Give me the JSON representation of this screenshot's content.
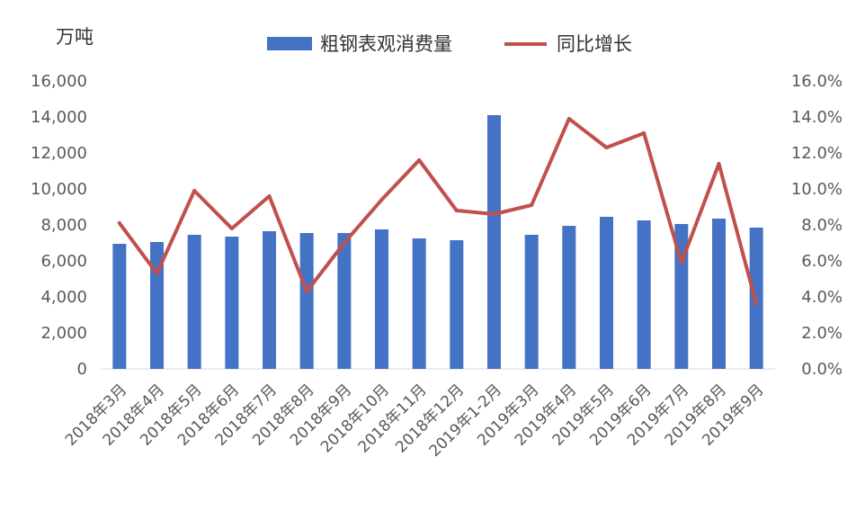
{
  "chart_data": {
    "type": "bar",
    "y_unit_label": "万吨",
    "categories": [
      "2018年3月",
      "2018年4月",
      "2018年5月",
      "2018年6月",
      "2018年7月",
      "2018年8月",
      "2018年9月",
      "2018年10月",
      "2018年11月",
      "2018年12月",
      "2019年1-2月",
      "2019年3月",
      "2019年4月",
      "2019年5月",
      "2019年6月",
      "2019年7月",
      "2019年8月",
      "2019年9月"
    ],
    "series": [
      {
        "name": "粗钢表观消费量",
        "type": "bar",
        "axis": "left",
        "color": "#4472C4",
        "values": [
          6950,
          7050,
          7450,
          7350,
          7650,
          7550,
          7550,
          7750,
          7250,
          7150,
          14100,
          7450,
          7950,
          8450,
          8250,
          8050,
          8350,
          7850
        ]
      },
      {
        "name": "同比增长",
        "type": "line",
        "axis": "right",
        "color": "#C0504D",
        "values": [
          8.1,
          5.3,
          9.9,
          7.8,
          9.6,
          4.3,
          7.0,
          9.4,
          11.6,
          8.8,
          8.6,
          9.1,
          13.9,
          12.3,
          13.1,
          5.9,
          11.4,
          3.6
        ]
      }
    ],
    "y_left": {
      "min": 0,
      "max": 16000,
      "ticks": [
        "0",
        "2,000",
        "4,000",
        "6,000",
        "8,000",
        "10,000",
        "12,000",
        "14,000",
        "16,000"
      ]
    },
    "y_right": {
      "min": 0,
      "max": 16,
      "ticks": [
        "0.0%",
        "2.0%",
        "4.0%",
        "6.0%",
        "8.0%",
        "10.0%",
        "12.0%",
        "14.0%",
        "16.0%"
      ]
    },
    "legend_position": "top",
    "grid": false
  }
}
